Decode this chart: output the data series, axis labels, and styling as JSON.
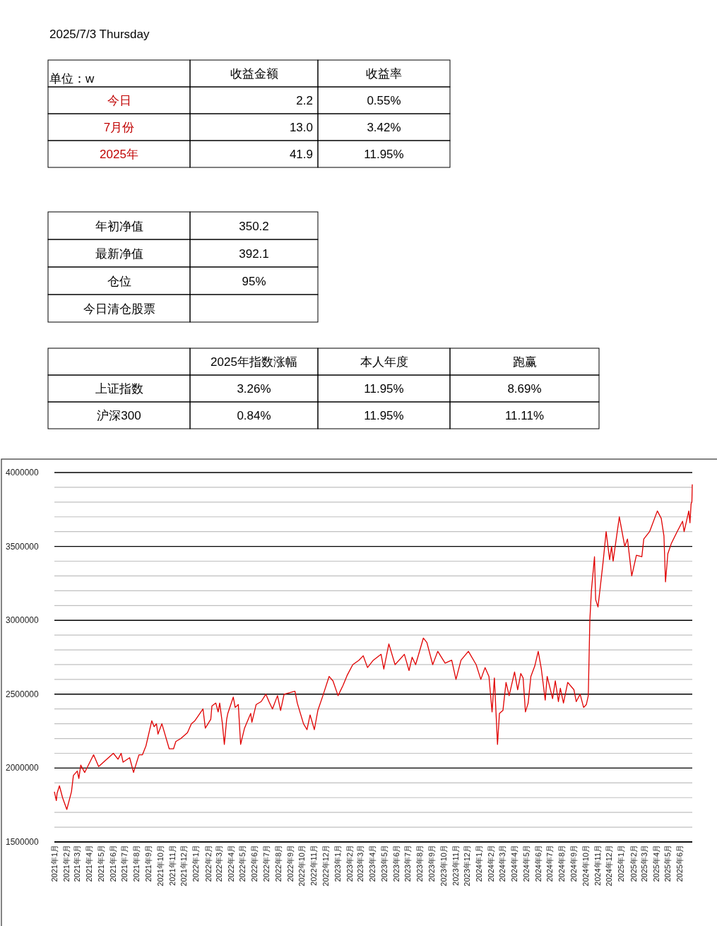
{
  "chart_data": [
    {
      "type": "other",
      "title": "2025/7/3 Thursday",
      "color": "#c00000",
      "cell_labels": [
        [
          "单位：w",
          "收益金额",
          "收益率"
        ],
        [
          "今日",
          "2.2",
          "0.55%"
        ],
        [
          "7月份",
          "13.0",
          "3.42%"
        ],
        [
          "2025年",
          "41.9",
          "11.95%"
        ]
      ]
    },
    {
      "type": "other",
      "cell_labels": [
        [
          "年初净值",
          "350.2"
        ],
        [
          "最新净值",
          "392.1"
        ],
        [
          "仓位",
          "95%"
        ],
        [
          "今日清仓股票",
          null
        ]
      ]
    },
    {
      "type": "other",
      "cell_labels": [
        [
          null,
          "2025年指数涨幅",
          "本人年度",
          "跑赢"
        ],
        [
          "上证指数",
          "3.26%",
          "11.95%",
          "8.69%"
        ],
        [
          "沪深300",
          "0.84%",
          "11.95%",
          "11.11%"
        ]
      ]
    },
    {
      "type": "line",
      "grid": true,
      "line_style": "solid",
      "marker": "none",
      "tick_labels": "xy",
      "xlim": [
        "2021-01-01",
        "2025-07-03"
      ],
      "ylim": [
        1500000,
        4000000
      ],
      "yticks": [
        1500000,
        {
          "value": 1600000,
          "label": null
        },
        {
          "value": 1700000,
          "label": null
        },
        {
          "value": 1800000,
          "label": null
        },
        {
          "value": 1900000,
          "label": null
        },
        2000000,
        {
          "value": 2100000,
          "label": null
        },
        {
          "value": 2200000,
          "label": null
        },
        {
          "value": 2300000,
          "label": null
        },
        {
          "value": 2400000,
          "label": null
        },
        2500000,
        {
          "value": 2600000,
          "label": null
        },
        {
          "value": 2700000,
          "label": null
        },
        {
          "value": 2800000,
          "label": null
        },
        {
          "value": 2900000,
          "label": null
        },
        3000000,
        {
          "value": 3100000,
          "label": null
        },
        {
          "value": 3200000,
          "label": null
        },
        {
          "value": 3300000,
          "label": null
        },
        {
          "value": 3400000,
          "label": null
        },
        3500000,
        {
          "value": 3600000,
          "label": null
        },
        {
          "value": 3700000,
          "label": null
        },
        {
          "value": 3800000,
          "label": null
        },
        {
          "value": 3900000,
          "label": null
        },
        4000000
      ],
      "xticks": [
        {
          "value": "2021-01-01",
          "label": "2021年1月"
        },
        {
          "value": "2021-02-01",
          "label": "2021年2月"
        },
        {
          "value": "2021-03-01",
          "label": "2021年3月"
        },
        {
          "value": "2021-04-01",
          "label": "2021年4月"
        },
        {
          "value": "2021-05-01",
          "label": "2021年5月"
        },
        {
          "value": "2021-06-01",
          "label": "2021年6月"
        },
        {
          "value": "2021-07-01",
          "label": "2021年7月"
        },
        {
          "value": "2021-08-01",
          "label": "2021年8月"
        },
        {
          "value": "2021-09-01",
          "label": "2021年9月"
        },
        {
          "value": "2021-10-01",
          "label": "2021年10月"
        },
        {
          "value": "2021-11-01",
          "label": "2021年11月"
        },
        {
          "value": "2021-12-01",
          "label": "2021年12月"
        },
        {
          "value": "2022-01-01",
          "label": "2022年1月"
        },
        {
          "value": "2022-02-01",
          "label": "2022年2月"
        },
        {
          "value": "2022-03-01",
          "label": "2022年3月"
        },
        {
          "value": "2022-04-01",
          "label": "2022年4月"
        },
        {
          "value": "2022-05-01",
          "label": "2022年5月"
        },
        {
          "value": "2022-06-01",
          "label": "2022年6月"
        },
        {
          "value": "2022-07-01",
          "label": "2022年7月"
        },
        {
          "value": "2022-08-01",
          "label": "2022年8月"
        },
        {
          "value": "2022-09-01",
          "label": "2022年9月"
        },
        {
          "value": "2022-10-01",
          "label": "2022年10月"
        },
        {
          "value": "2022-11-01",
          "label": "2022年11月"
        },
        {
          "value": "2022-12-01",
          "label": "2022年12月"
        },
        {
          "value": "2023-01-01",
          "label": "2023年1月"
        },
        {
          "value": "2023-02-01",
          "label": "2023年2月"
        },
        {
          "value": "2023-03-01",
          "label": "2023年3月"
        },
        {
          "value": "2023-04-01",
          "label": "2023年4月"
        },
        {
          "value": "2023-05-01",
          "label": "2023年5月"
        },
        {
          "value": "2023-06-01",
          "label": "2023年6月"
        },
        {
          "value": "2023-07-01",
          "label": "2023年7月"
        },
        {
          "value": "2023-08-01",
          "label": "2023年8月"
        },
        {
          "value": "2023-09-01",
          "label": "2023年9月"
        },
        {
          "value": "2023-10-01",
          "label": "2023年10月"
        },
        {
          "value": "2023-11-01",
          "label": "2023年11月"
        },
        {
          "value": "2023-12-01",
          "label": "2023年12月"
        },
        {
          "value": "2024-01-01",
          "label": "2024年1月"
        },
        {
          "value": "2024-02-01",
          "label": "2024年2月"
        },
        {
          "value": "2024-03-01",
          "label": "2024年3月"
        },
        {
          "value": "2024-04-01",
          "label": "2024年4月"
        },
        {
          "value": "2024-05-01",
          "label": "2024年5月"
        },
        {
          "value": "2024-06-01",
          "label": "2024年6月"
        },
        {
          "value": "2024-07-01",
          "label": "2024年7月"
        },
        {
          "value": "2024-08-01",
          "label": "2024年8月"
        },
        {
          "value": "2024-09-01",
          "label": "2024年9月"
        },
        {
          "value": "2024-10-01",
          "label": "2024年10月"
        },
        {
          "value": "2024-11-01",
          "label": "2024年11月"
        },
        {
          "value": "2024-12-01",
          "label": "2024年12月"
        },
        {
          "value": "2025-01-01",
          "label": "2025年1月"
        },
        {
          "value": "2025-02-01",
          "label": "2025年2月"
        },
        {
          "value": "2025-03-01",
          "label": "2025年3月"
        },
        {
          "value": "2025-04-01",
          "label": "2025年4月"
        },
        {
          "value": "2025-05-01",
          "label": "2025年5月"
        },
        {
          "value": "2025-06-01",
          "label": "2025年6月"
        }
      ],
      "series": [
        {
          "color": "#e00000",
          "x": [
            "2021-01-01",
            "2021-01-06",
            "2021-01-08",
            "2021-01-14",
            "2021-01-22",
            "2021-02-02",
            "2021-02-14",
            "2021-02-19",
            "2021-03-01",
            "2021-03-05",
            "2021-03-10",
            "2021-03-20",
            "2021-04-12",
            "2021-04-25",
            "2021-06-02",
            "2021-06-14",
            "2021-06-22",
            "2021-06-27",
            "2021-07-14",
            "2021-07-24",
            "2021-08-07",
            "2021-08-16",
            "2021-08-25",
            "2021-09-09",
            "2021-09-15",
            "2021-09-21",
            "2021-09-25",
            "2021-10-05",
            "2021-10-24",
            "2021-11-04",
            "2021-11-10",
            "2021-11-23",
            "2021-12-10",
            "2021-12-20",
            "2021-12-29",
            "2022-01-19",
            "2022-01-25",
            "2022-02-08",
            "2022-02-11",
            "2022-02-21",
            "2022-02-27",
            "2022-03-03",
            "2022-03-10",
            "2022-03-15",
            "2022-03-21",
            "2022-03-24",
            "2022-04-07",
            "2022-04-12",
            "2022-04-20",
            "2022-04-26",
            "2022-05-06",
            "2022-05-22",
            "2022-05-25",
            "2022-06-05",
            "2022-06-18",
            "2022-06-30",
            "2022-07-08",
            "2022-07-17",
            "2022-07-30",
            "2022-08-07",
            "2022-08-16",
            "2022-09-13",
            "2022-09-19",
            "2022-10-05",
            "2022-10-14",
            "2022-10-22",
            "2022-11-02",
            "2022-11-11",
            "2022-11-24",
            "2022-12-10",
            "2022-12-20",
            "2023-01-02",
            "2023-01-15",
            "2023-01-26",
            "2023-02-09",
            "2023-02-25",
            "2023-03-08",
            "2023-03-19",
            "2023-04-03",
            "2023-04-23",
            "2023-04-30",
            "2023-05-13",
            "2023-05-29",
            "2023-06-22",
            "2023-07-04",
            "2023-07-12",
            "2023-07-21",
            "2023-08-10",
            "2023-08-19",
            "2023-09-03",
            "2023-09-16",
            "2023-10-05",
            "2023-10-22",
            "2023-11-02",
            "2023-11-15",
            "2023-12-04",
            "2023-12-24",
            "2024-01-05",
            "2024-01-16",
            "2024-01-26",
            "2024-02-03",
            "2024-02-09",
            "2024-02-17",
            "2024-02-22",
            "2024-03-02",
            "2024-03-10",
            "2024-03-18",
            "2024-04-01",
            "2024-04-09",
            "2024-04-17",
            "2024-04-23",
            "2024-04-29",
            "2024-05-06",
            "2024-05-13",
            "2024-05-23",
            "2024-06-01",
            "2024-06-09",
            "2024-06-19",
            "2024-06-24",
            "2024-07-08",
            "2024-07-15",
            "2024-07-23",
            "2024-07-28",
            "2024-08-05",
            "2024-08-16",
            "2024-09-01",
            "2024-09-07",
            "2024-09-17",
            "2024-09-26",
            "2024-10-03",
            "2024-10-08",
            "2024-10-12",
            "2024-10-16",
            "2024-10-24",
            "2024-10-27",
            "2024-11-02",
            "2024-11-15",
            "2024-11-23",
            "2024-12-02",
            "2024-12-07",
            "2024-12-11",
            "2024-12-27",
            "2025-01-10",
            "2025-01-17",
            "2025-01-28",
            "2025-02-09",
            "2025-02-23",
            "2025-02-28",
            "2025-03-15",
            "2025-04-04",
            "2025-04-14",
            "2025-04-21",
            "2025-04-25",
            "2025-05-01",
            "2025-05-10",
            "2025-05-25",
            "2025-06-08",
            "2025-06-12",
            "2025-06-24",
            "2025-06-27",
            "2025-06-30",
            "2025-07-02",
            "2025-07-03"
          ],
          "values": [
            1840000,
            1780000,
            1830000,
            1880000,
            1800000,
            1720000,
            1840000,
            1950000,
            1980000,
            1930000,
            2020000,
            1970000,
            2090000,
            2010000,
            2100000,
            2060000,
            2100000,
            2040000,
            2070000,
            1970000,
            2090000,
            2090000,
            2150000,
            2320000,
            2280000,
            2300000,
            2230000,
            2300000,
            2130000,
            2130000,
            2180000,
            2200000,
            2240000,
            2300000,
            2320000,
            2400000,
            2270000,
            2330000,
            2420000,
            2440000,
            2380000,
            2440000,
            2300000,
            2160000,
            2330000,
            2370000,
            2480000,
            2410000,
            2430000,
            2160000,
            2270000,
            2370000,
            2310000,
            2430000,
            2450000,
            2500000,
            2450000,
            2400000,
            2490000,
            2390000,
            2500000,
            2520000,
            2440000,
            2300000,
            2260000,
            2360000,
            2260000,
            2390000,
            2490000,
            2620000,
            2590000,
            2490000,
            2560000,
            2630000,
            2700000,
            2730000,
            2760000,
            2680000,
            2730000,
            2770000,
            2670000,
            2840000,
            2700000,
            2770000,
            2660000,
            2750000,
            2700000,
            2880000,
            2850000,
            2700000,
            2790000,
            2710000,
            2730000,
            2600000,
            2730000,
            2790000,
            2700000,
            2600000,
            2680000,
            2620000,
            2380000,
            2610000,
            2160000,
            2370000,
            2390000,
            2580000,
            2490000,
            2650000,
            2530000,
            2640000,
            2610000,
            2380000,
            2440000,
            2620000,
            2690000,
            2790000,
            2670000,
            2460000,
            2620000,
            2470000,
            2590000,
            2450000,
            2540000,
            2440000,
            2580000,
            2530000,
            2450000,
            2500000,
            2410000,
            2430000,
            2490000,
            3000000,
            3200000,
            3430000,
            3140000,
            3090000,
            3390000,
            3600000,
            3410000,
            3500000,
            3400000,
            3700000,
            3500000,
            3550000,
            3300000,
            3440000,
            3430000,
            3550000,
            3600000,
            3740000,
            3690000,
            3570000,
            3260000,
            3450000,
            3520000,
            3600000,
            3670000,
            3600000,
            3740000,
            3660000,
            3790000,
            3800000,
            3920000
          ]
        }
      ]
    }
  ]
}
